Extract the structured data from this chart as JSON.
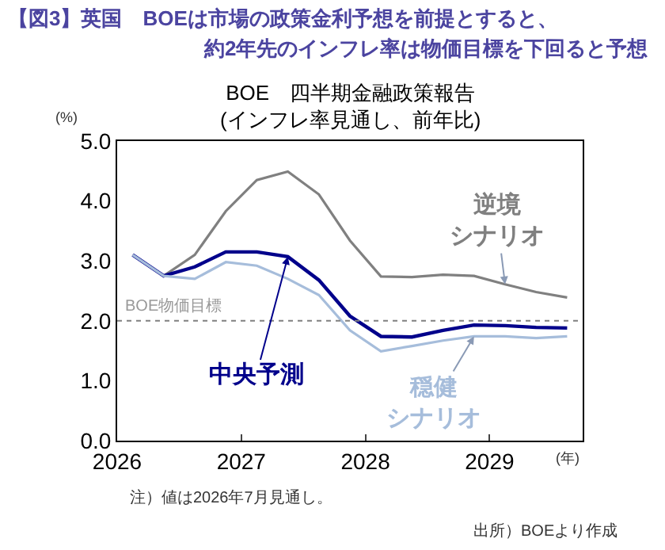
{
  "chart_data": {
    "type": "line",
    "title": "【図3】英国　BOEは市場の政策金利予想を前提とすると、約2年先のインフレ率は物価目標を下回ると予想",
    "subtitle": "BOE　四半期金融政策報告\n(インフレ率見通し、前年比)",
    "ylabel": "(%)",
    "xlabel": "(年)",
    "x": [
      2026.125,
      2026.375,
      2026.625,
      2026.875,
      2027.125,
      2027.375,
      2027.625,
      2027.875,
      2028.125,
      2028.375,
      2028.625,
      2028.875,
      2029.125,
      2029.375,
      2029.625
    ],
    "series": [
      {
        "name": "逆境シナリオ",
        "color": "#808080",
        "values": [
          3.1,
          2.75,
          3.1,
          3.83,
          4.35,
          4.49,
          4.11,
          3.34,
          2.74,
          2.73,
          2.77,
          2.75,
          2.61,
          2.48,
          2.39
        ]
      },
      {
        "name": "中央予測",
        "color": "#00008b",
        "values": [
          3.1,
          2.75,
          2.9,
          3.15,
          3.15,
          3.07,
          2.68,
          2.08,
          1.74,
          1.73,
          1.84,
          1.93,
          1.92,
          1.89,
          1.88
        ]
      },
      {
        "name": "穏健シナリオ",
        "color": "#a6bddb",
        "values": [
          3.1,
          2.75,
          2.7,
          2.98,
          2.92,
          2.7,
          2.43,
          1.84,
          1.49,
          1.58,
          1.67,
          1.74,
          1.74,
          1.71,
          1.74
        ]
      }
    ],
    "xlim": [
      2026,
      2029.75
    ],
    "xticks": [
      2026,
      2027,
      2028,
      2029
    ],
    "ylim": [
      0,
      5
    ],
    "yticks": [
      {
        "value": 0,
        "label": "0.0"
      },
      {
        "value": 1,
        "label": "1.0"
      },
      {
        "value": 2,
        "label": "2.0"
      },
      {
        "value": 3,
        "label": "3.0"
      },
      {
        "value": 4,
        "label": "4.0"
      },
      {
        "value": 5,
        "label": "5.0"
      }
    ],
    "ref_lines": [
      {
        "axis": "y",
        "value": 2,
        "label": "BOE物価目標",
        "color": "#808080",
        "line_style": "dotted"
      }
    ],
    "annotations": [
      "注）値は2026年7月見通し。",
      "出所）BOEより作成"
    ],
    "grid": false,
    "legend": false,
    "marker": "none",
    "line_style": "solid"
  }
}
